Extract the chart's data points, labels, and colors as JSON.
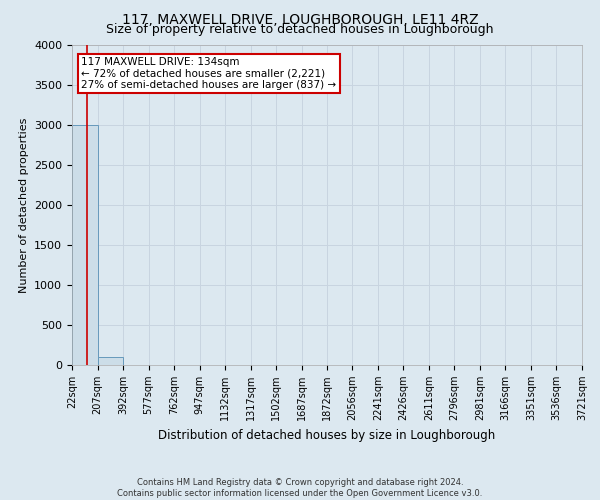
{
  "title": "117, MAXWELL DRIVE, LOUGHBOROUGH, LE11 4RZ",
  "subtitle": "Size of property relative to detached houses in Loughborough",
  "xlabel": "Distribution of detached houses by size in Loughborough",
  "ylabel": "Number of detached properties",
  "footnote1": "Contains HM Land Registry data © Crown copyright and database right 2024.",
  "footnote2": "Contains public sector information licensed under the Open Government Licence v3.0.",
  "bin_labels": [
    "22sqm",
    "207sqm",
    "392sqm",
    "577sqm",
    "762sqm",
    "947sqm",
    "1132sqm",
    "1317sqm",
    "1502sqm",
    "1687sqm",
    "1872sqm",
    "2056sqm",
    "2241sqm",
    "2426sqm",
    "2611sqm",
    "2796sqm",
    "2981sqm",
    "3166sqm",
    "3351sqm",
    "3536sqm",
    "3721sqm"
  ],
  "bar_heights": [
    3000,
    100,
    0,
    0,
    0,
    0,
    0,
    0,
    0,
    0,
    0,
    0,
    0,
    0,
    0,
    0,
    0,
    0,
    0,
    0
  ],
  "bar_color": "#ccdde8",
  "bar_edge_color": "#6699bb",
  "ylim": [
    0,
    4000
  ],
  "yticks": [
    0,
    500,
    1000,
    1500,
    2000,
    2500,
    3000,
    3500,
    4000
  ],
  "property_size": 134,
  "property_label": "117 MAXWELL DRIVE: 134sqm",
  "annotation_line1": "← 72% of detached houses are smaller (2,221)",
  "annotation_line2": "27% of semi-detached houses are larger (837) →",
  "red_line_color": "#cc0000",
  "annotation_box_facecolor": "#ffffff",
  "annotation_box_edgecolor": "#cc0000",
  "grid_color": "#c8d4e0",
  "bg_color": "#dce8f0",
  "bin_edges": [
    22,
    207,
    392,
    577,
    762,
    947,
    1132,
    1317,
    1502,
    1687,
    1872,
    2056,
    2241,
    2426,
    2611,
    2796,
    2981,
    3166,
    3351,
    3536,
    3721
  ],
  "title_fontsize": 10,
  "subtitle_fontsize": 9,
  "ylabel_fontsize": 8,
  "xlabel_fontsize": 8.5,
  "ytick_fontsize": 8,
  "xtick_fontsize": 7,
  "annot_fontsize": 7.5,
  "footnote_fontsize": 6
}
